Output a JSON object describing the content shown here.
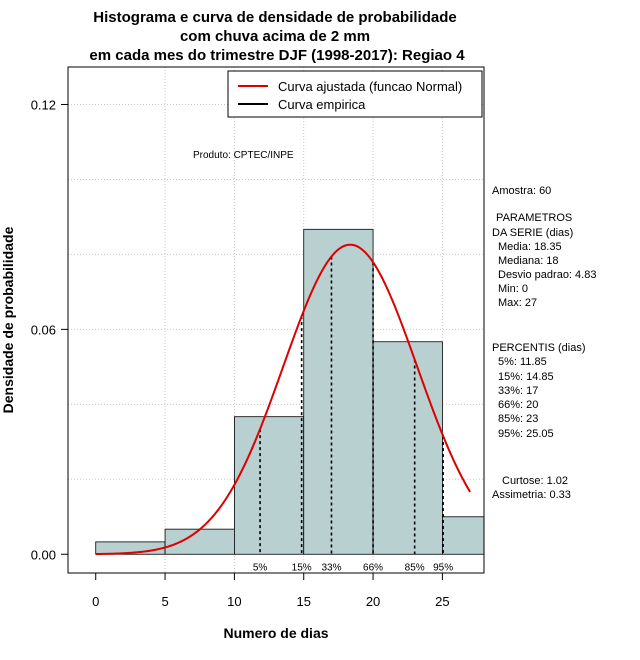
{
  "chart_data": {
    "type": "bar",
    "title": [
      "Histograma e curva de densidade de probabilidade",
      "com chuva acima de 2 mm",
      "em cada mes do trimestre DJF (1998-2017): Regiao 4"
    ],
    "xlabel": "Numero de dias",
    "ylabel": "Densidade de probabilidade",
    "xlim": [
      -2,
      28
    ],
    "ylim": [
      -0.005,
      0.13
    ],
    "x_ticks": [
      0,
      5,
      10,
      15,
      20,
      25
    ],
    "x_tick_labels": [
      "0",
      "5",
      "10",
      "15",
      "20",
      "25"
    ],
    "y_ticks": [
      0.0,
      0.06,
      0.12
    ],
    "y_tick_labels": [
      "0.00",
      "0.06",
      "0.12"
    ],
    "grid_x": [
      5,
      10,
      15,
      20,
      25
    ],
    "grid_y": [
      0.02,
      0.04,
      0.06,
      0.08,
      0.1,
      0.12
    ],
    "bins": [
      {
        "x0": 0,
        "x1": 5,
        "density": 0.0033
      },
      {
        "x0": 5,
        "x1": 10,
        "density": 0.0067
      },
      {
        "x0": 10,
        "x1": 15,
        "density": 0.0367
      },
      {
        "x0": 15,
        "x1": 20,
        "density": 0.0867
      },
      {
        "x0": 20,
        "x1": 25,
        "density": 0.0567
      },
      {
        "x0": 25,
        "x1": 30,
        "density": 0.01
      }
    ],
    "normal_fit": {
      "mean": 18.35,
      "sd": 4.83,
      "x_from": 0,
      "x_to": 27,
      "color": "#dd0000"
    },
    "bar_color": "#b9d0d0",
    "percentile_lines": [
      {
        "x": 11.85,
        "label": "5%"
      },
      {
        "x": 14.85,
        "label": "15%"
      },
      {
        "x": 17,
        "label": "33%"
      },
      {
        "x": 20,
        "label": "66%"
      },
      {
        "x": 23,
        "label": "85%"
      },
      {
        "x": 25.05,
        "label": "95%"
      }
    ],
    "legend": {
      "position": "top-right",
      "entries": [
        {
          "label": "Curva ajustada (funcao Normal)",
          "color": "#dd0000"
        },
        {
          "label": "Curva empirica",
          "color": "#000000"
        }
      ]
    },
    "annotation": "Produto: CPTEC/INPE",
    "stats": {
      "amostra": "Amostra: 60",
      "param_title": " PARAMETROS",
      "param_subtitle": "DA SERIE (dias)",
      "media": "Media: 18.35",
      "mediana": "Mediana: 18",
      "desvio": "Desvio padrao: 4.83",
      "min": "Min: 0",
      "max": "Max: 27",
      "perc_title": "PERCENTIS (dias)",
      "p5": "5%: 11.85",
      "p15": "15%: 14.85",
      "p33": "33%: 17",
      "p66": "66%: 20",
      "p85": "85%: 23",
      "p95": "95%: 25.05",
      "curtose": "Curtose: 1.02",
      "assimetria": "Assimetria: 0.33"
    }
  }
}
